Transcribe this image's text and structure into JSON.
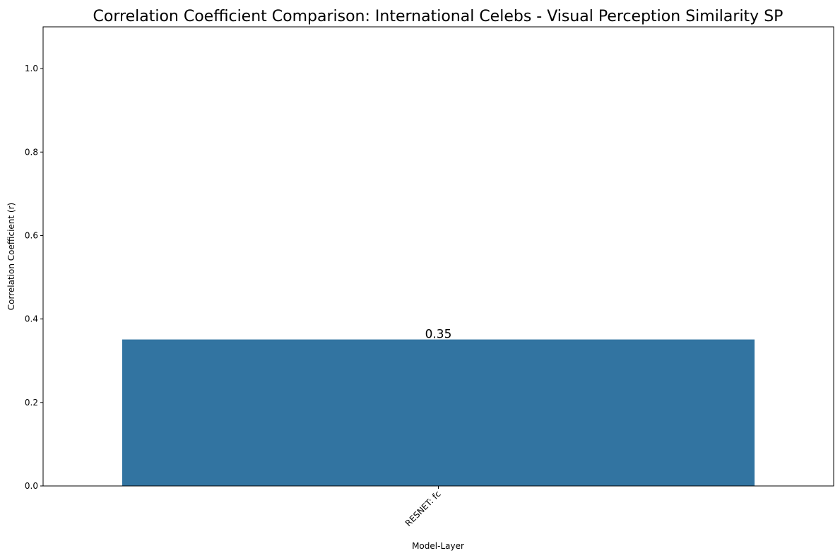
{
  "chart_data": {
    "type": "bar",
    "title": "Correlation Coefficient Comparison: International Celebs - Visual Perception Similarity SP",
    "xlabel": "Model-Layer",
    "ylabel": "Correlation Coefficient (r)",
    "categories": [
      "RESNET: fc"
    ],
    "values": [
      0.351
    ],
    "data_labels": [
      "0.35"
    ],
    "ylim": [
      0,
      1.1
    ],
    "yticks": [
      0.0,
      0.2,
      0.4,
      0.6,
      0.8,
      1.0
    ],
    "ytick_labels": [
      "0.0",
      "0.2",
      "0.4",
      "0.6",
      "0.8",
      "1.0"
    ],
    "grid": false,
    "legend": "none",
    "bar_color": "#3274a1"
  }
}
